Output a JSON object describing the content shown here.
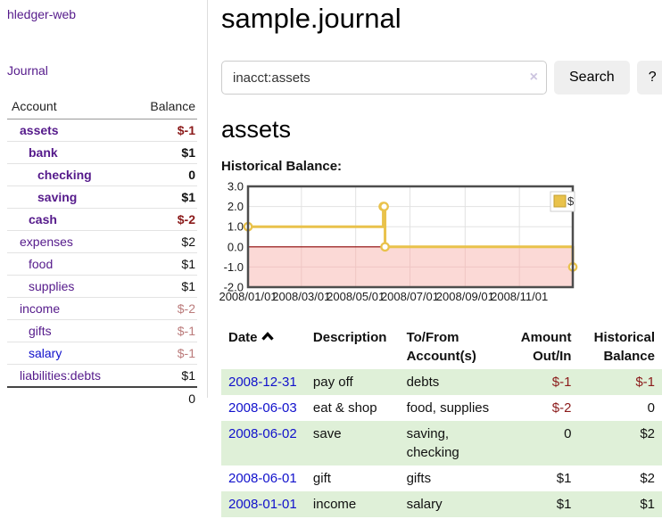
{
  "brand": "hledger-web",
  "sidebar": {
    "nav_journal": "Journal",
    "accounts": {
      "headers": {
        "account": "Account",
        "balance": "Balance"
      },
      "rows": [
        {
          "name": "assets",
          "balance": "$-1"
        },
        {
          "name": "bank",
          "balance": "$1"
        },
        {
          "name": "checking",
          "balance": "0"
        },
        {
          "name": "saving",
          "balance": "$1"
        },
        {
          "name": "cash",
          "balance": "$-2"
        },
        {
          "name": "expenses",
          "balance": "$2"
        },
        {
          "name": "food",
          "balance": "$1"
        },
        {
          "name": "supplies",
          "balance": "$1"
        },
        {
          "name": "income",
          "balance": "$-2"
        },
        {
          "name": "gifts",
          "balance": "$-1"
        },
        {
          "name": "salary",
          "balance": "$-1"
        },
        {
          "name": "liabilities:debts",
          "balance": "$1"
        }
      ],
      "total": "0"
    }
  },
  "header": {
    "title": "sample.journal"
  },
  "search": {
    "value": "inacct:assets",
    "placeholder": "",
    "clear_icon": "×",
    "button_label": "Search",
    "help_label": "?"
  },
  "account_view": {
    "heading": "assets",
    "chart_title": "Historical Balance:"
  },
  "chart_data": {
    "type": "line",
    "step": true,
    "title": "Historical Balance",
    "x_start": "2008-01-01",
    "x_end": "2008-12-31",
    "ylim": [
      -2,
      3
    ],
    "grid": true,
    "y_ticks": [
      {
        "label": "3.0",
        "value": 3
      },
      {
        "label": "2.0",
        "value": 2
      },
      {
        "label": "1.0",
        "value": 1
      },
      {
        "label": "0.0",
        "value": 0
      },
      {
        "label": "-1.0",
        "value": -1
      },
      {
        "label": "-2.0",
        "value": -2
      }
    ],
    "x_ticks": [
      {
        "label": "2008/01/01",
        "date": "2008-01-01"
      },
      {
        "label": "2008/03/01",
        "date": "2008-03-01"
      },
      {
        "label": "2008/05/01",
        "date": "2008-05-01"
      },
      {
        "label": "2008/07/01",
        "date": "2008-07-01"
      },
      {
        "label": "2008/09/01",
        "date": "2008-09-01"
      },
      {
        "label": "2008/11/01",
        "date": "2008-11-01"
      }
    ],
    "series": [
      {
        "name": "$",
        "color": "#e9c24b",
        "points": [
          {
            "date": "2008-01-01",
            "value": 1
          },
          {
            "date": "2008-06-01",
            "value": 2
          },
          {
            "date": "2008-06-02",
            "value": 2
          },
          {
            "date": "2008-06-03",
            "value": 0
          },
          {
            "date": "2008-12-31",
            "value": -1
          }
        ]
      }
    ],
    "legend": {
      "label": "$",
      "position": "top-right"
    },
    "negative_region_color": "#fbd9d6",
    "zero_line_color": "#8b0000"
  },
  "register": {
    "headers": {
      "date": "Date",
      "description": "Description",
      "accounts": "To/From\nAccount(s)",
      "amount": "Amount\nOut/In",
      "balance": "Historical\nBalance"
    },
    "sort_icon": "chevron-up",
    "rows": [
      {
        "date": "2008-12-31",
        "description": "pay off",
        "accounts": "debts",
        "amount": "$-1",
        "balance": "$-1"
      },
      {
        "date": "2008-06-03",
        "description": "eat & shop",
        "accounts": "food, supplies",
        "amount": "$-2",
        "balance": "0"
      },
      {
        "date": "2008-06-02",
        "description": "save",
        "accounts": "saving,\nchecking",
        "amount": "0",
        "balance": "$2"
      },
      {
        "date": "2008-06-01",
        "description": "gift",
        "accounts": "gifts",
        "amount": "$1",
        "balance": "$2"
      },
      {
        "date": "2008-01-01",
        "description": "income",
        "accounts": "salary",
        "amount": "$1",
        "balance": "$1"
      }
    ]
  },
  "colors": {
    "link_purple": "#551a8b",
    "link_blue": "#1111cc",
    "negative_strong": "#8b1a1a",
    "negative_soft": "#bb7b7b",
    "row_shade_green": "#dff0d8",
    "series_gold": "#e9c24b"
  }
}
